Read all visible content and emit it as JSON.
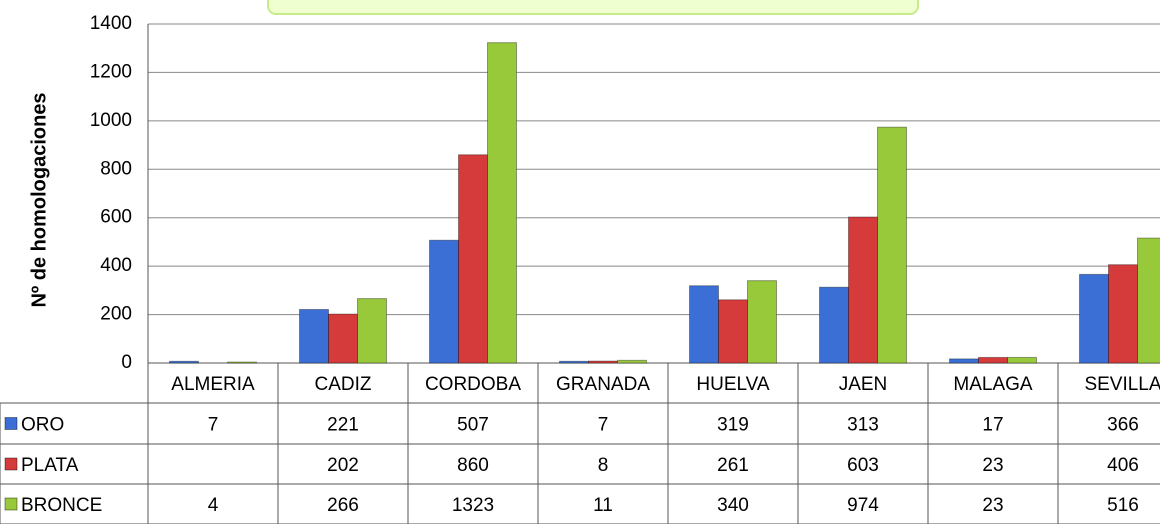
{
  "chart_data": {
    "type": "bar",
    "y_label": "Nº de homologaciones",
    "categories": [
      "ALMERIA",
      "CADIZ",
      "CORDOBA",
      "GRANADA",
      "HUELVA",
      "JAEN",
      "MALAGA",
      "SEVILLA"
    ],
    "series": [
      {
        "name": "ORO",
        "color": "#3b6fd6",
        "values": [
          7,
          221,
          507,
          7,
          319,
          313,
          17,
          366
        ]
      },
      {
        "name": "PLATA",
        "color": "#d63b3b",
        "values": [
          null,
          202,
          860,
          8,
          261,
          603,
          23,
          406
        ]
      },
      {
        "name": "BRONCE",
        "color": "#98c93a",
        "values": [
          4,
          266,
          1323,
          11,
          340,
          974,
          23,
          516
        ]
      }
    ],
    "ylim": [
      0,
      1400
    ],
    "yticks": [
      0,
      200,
      400,
      600,
      800,
      1000,
      1200,
      1400
    ],
    "grid": true
  }
}
